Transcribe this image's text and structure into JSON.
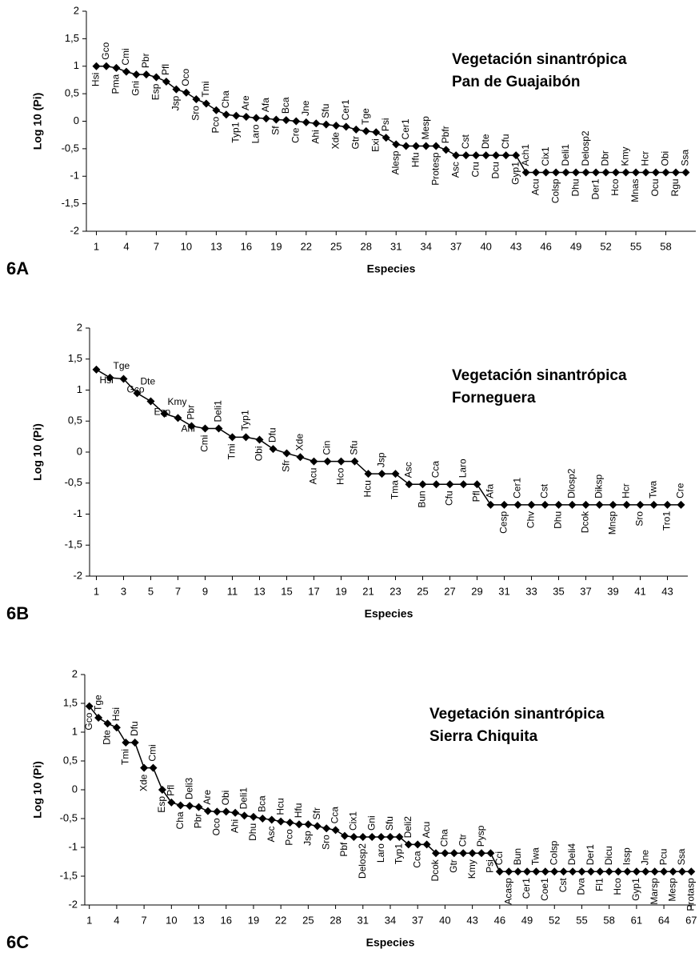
{
  "chart_data": [
    {
      "type": "line",
      "panel": "6A",
      "title": "Vegetación sinantrópica",
      "subtitle": "Pan de Guajaibón",
      "y_label": "Log 10 (Pi)",
      "x_label": "Especies",
      "color": "#000000",
      "xlim": [
        0,
        61
      ],
      "ylim": [
        -2,
        2
      ],
      "xticks": [
        1,
        4,
        7,
        10,
        13,
        16,
        19,
        22,
        25,
        28,
        31,
        34,
        37,
        40,
        43,
        46,
        49,
        52,
        55,
        58
      ],
      "yticks": [
        -2,
        {
          "value": -1.5,
          "label": "-1,5"
        },
        -1,
        {
          "value": -0.5,
          "label": "-0,5"
        },
        0,
        {
          "value": 0.5,
          "label": "0,5"
        },
        1,
        {
          "value": 1.5,
          "label": "1,5"
        },
        2
      ],
      "x": [
        1,
        2,
        3,
        4,
        5,
        6,
        7,
        8,
        9,
        10,
        11,
        12,
        13,
        14,
        15,
        16,
        17,
        18,
        19,
        20,
        21,
        22,
        23,
        24,
        25,
        26,
        27,
        28,
        29,
        30,
        31,
        32,
        33,
        34,
        35,
        36,
        37,
        38,
        39,
        40,
        41,
        42,
        43,
        44,
        45,
        46,
        47,
        48,
        49,
        50,
        51,
        52,
        53,
        54,
        55,
        56,
        57,
        58,
        59,
        60
      ],
      "point_labels": [
        "Hsi",
        "Gco",
        "Pma",
        "Cmi",
        "Gni",
        "Pbr",
        "Esp",
        "Pfl",
        "Jsp",
        "Oco",
        "Sro",
        "Tmi",
        "Pco",
        "Cha",
        "Typ1",
        "Are",
        "Laro",
        "Afa",
        "Sf",
        "Bca",
        "Cre",
        "Jne",
        "Ahi",
        "Sfu",
        "Xde",
        "Cer1",
        "Gtr",
        "Tge",
        "Exi",
        "Psi",
        "Alesp",
        "Cer1",
        "Hfu",
        "Mesp",
        "Protesp",
        "Pbfr",
        "Asc",
        "Cst",
        "Cru",
        "Dte",
        "Dcu",
        "Cfu",
        "Gyp1",
        "Ach1",
        "Acu",
        "Cix1",
        "Colsp",
        "Deli1",
        "Dhu",
        "Delosp2",
        "Der1",
        "Dbr",
        "Hco",
        "Kmy",
        "Mnas",
        "Hcr",
        "Ocu",
        "Obi",
        "Rgu",
        "Ssa"
      ],
      "values": [
        1.0,
        1.0,
        0.97,
        0.9,
        0.85,
        0.85,
        0.8,
        0.72,
        0.58,
        0.52,
        0.4,
        0.32,
        0.2,
        0.12,
        0.1,
        0.08,
        0.06,
        0.05,
        0.03,
        0.02,
        0.0,
        -0.02,
        -0.04,
        -0.06,
        -0.08,
        -0.1,
        -0.15,
        -0.18,
        -0.2,
        -0.3,
        -0.42,
        -0.45,
        -0.45,
        -0.45,
        -0.45,
        -0.52,
        -0.62,
        -0.62,
        -0.62,
        -0.62,
        -0.62,
        -0.62,
        -0.62,
        -0.93,
        -0.93,
        -0.93,
        -0.93,
        -0.93,
        -0.93,
        -0.93,
        -0.93,
        -0.93,
        -0.93,
        -0.93,
        -0.93,
        -0.93,
        -0.93,
        -0.93,
        -0.93,
        -0.93
      ]
    },
    {
      "type": "line",
      "panel": "6B",
      "title": "Vegetación sinantrópica",
      "subtitle": "Forneguera",
      "y_label": "Log 10 (Pi)",
      "x_label": "Especies",
      "color": "#000000",
      "xlim": [
        0.5,
        44.5
      ],
      "ylim": [
        -2,
        2
      ],
      "xticks": [
        1,
        3,
        5,
        7,
        9,
        11,
        13,
        15,
        17,
        19,
        21,
        23,
        25,
        27,
        29,
        31,
        33,
        35,
        37,
        39,
        41,
        43
      ],
      "yticks": [
        -2,
        {
          "value": -1.5,
          "label": "-1,5"
        },
        -1,
        {
          "value": -0.5,
          "label": "-0,5"
        },
        0,
        {
          "value": 0.5,
          "label": "0,5"
        },
        1,
        {
          "value": 1.5,
          "label": "1,5"
        },
        2
      ],
      "x": [
        1,
        2,
        3,
        4,
        5,
        6,
        7,
        8,
        9,
        10,
        11,
        12,
        13,
        14,
        15,
        16,
        17,
        18,
        19,
        20,
        21,
        22,
        23,
        24,
        25,
        26,
        27,
        28,
        29,
        30,
        31,
        32,
        33,
        34,
        35,
        36,
        37,
        38,
        39,
        40,
        41,
        42,
        43,
        44
      ],
      "point_labels": [
        "Hsi",
        "Tge",
        "Gco",
        "Dte",
        "Esp",
        "Kmy",
        "Ahi",
        "Pbr",
        "Cmi",
        "Deli1",
        "Tmi",
        "Typ1",
        "Obi",
        "Dfu",
        "Sfr",
        "Xde",
        "Acu",
        "Cin",
        "Hco",
        "Sfu",
        "Hcu",
        "Jsp",
        "Tma",
        "Asc",
        "Bun",
        "Cca",
        "Cfu",
        "Laro",
        "Pfl",
        "Afa",
        "Cesp",
        "Cer1",
        "Chv",
        "Cst",
        "Dhu",
        "Dlosp2",
        "Dcok",
        "Diksp",
        "Mnsp",
        "Hcr",
        "Sro",
        "Twa",
        "Tro1",
        "Cre"
      ],
      "values": [
        1.33,
        1.2,
        1.18,
        0.95,
        0.82,
        0.62,
        0.55,
        0.42,
        0.38,
        0.38,
        0.24,
        0.24,
        0.2,
        0.05,
        -0.02,
        -0.08,
        -0.15,
        -0.15,
        -0.15,
        -0.15,
        -0.35,
        -0.35,
        -0.35,
        -0.52,
        -0.52,
        -0.52,
        -0.52,
        -0.52,
        -0.52,
        -0.85,
        -0.85,
        -0.85,
        -0.85,
        -0.85,
        -0.85,
        -0.85,
        -0.85,
        -0.85,
        -0.85,
        -0.85,
        -0.85,
        -0.85,
        -0.85,
        -0.85
      ]
    },
    {
      "type": "line",
      "panel": "6C",
      "title": "Vegetación sinantrópica",
      "subtitle": "Sierra Chiquita",
      "y_label": "Log 10 (Pi)",
      "x_label": "Especies",
      "color": "#000000",
      "xlim": [
        0.5,
        67.5
      ],
      "ylim": [
        -2,
        2
      ],
      "xticks": [
        1,
        4,
        7,
        10,
        13,
        16,
        19,
        22,
        25,
        28,
        31,
        34,
        37,
        40,
        43,
        46,
        49,
        52,
        55,
        58,
        61,
        64,
        67
      ],
      "yticks": [
        -2,
        {
          "value": -1.5,
          "label": "-1,5"
        },
        -1,
        {
          "value": -0.5,
          "label": "-0,5"
        },
        0,
        {
          "value": 0.5,
          "label": "0,5"
        },
        1,
        {
          "value": 1.5,
          "label": "1,5"
        },
        2
      ],
      "x": [
        1,
        2,
        3,
        4,
        5,
        6,
        7,
        8,
        9,
        10,
        11,
        12,
        13,
        14,
        15,
        16,
        17,
        18,
        19,
        20,
        21,
        22,
        23,
        24,
        25,
        26,
        27,
        28,
        29,
        30,
        31,
        32,
        33,
        34,
        35,
        36,
        37,
        38,
        39,
        40,
        41,
        42,
        43,
        44,
        45,
        46,
        47,
        48,
        49,
        50,
        51,
        52,
        53,
        54,
        55,
        56,
        57,
        58,
        59,
        60,
        61,
        62,
        63,
        64,
        65,
        66,
        67
      ],
      "point_labels": [
        "Gco",
        "Tge",
        "Dte",
        "Hsi",
        "Tmi",
        "Dfu",
        "Xde",
        "Cmi",
        "Esp",
        "Pfl",
        "Cha",
        "Deli3",
        "Pbr",
        "Are",
        "Oco",
        "Obi",
        "Ahi",
        "Deli1",
        "Dhu",
        "Bca",
        "Asc",
        "Hcu",
        "Pco",
        "Hfu",
        "Jsp",
        "Sfr",
        "Sro",
        "Cca",
        "Pbf",
        "Cix1",
        "Delosp2",
        "Gni",
        "Laro",
        "Sfu",
        "Typ1",
        "Deli2",
        "Cca",
        "Acu",
        "Dcok",
        "Cha",
        "Gtr",
        "Ctr",
        "Kmy",
        "Pysp",
        "Psi",
        "Cci",
        "Acasp",
        "Bun",
        "Cer1",
        "Twa",
        "Coe1",
        "Colsp",
        "Cst",
        "Deli4",
        "Dva",
        "Der1",
        "Fl1",
        "Dicu",
        "Hco",
        "Issp",
        "Gyp1",
        "Jne",
        "Marsp",
        "Pcu",
        "Mesp",
        "Ssa",
        "Protasp"
      ],
      "values": [
        1.45,
        1.25,
        1.15,
        1.08,
        0.82,
        0.82,
        0.38,
        0.38,
        0.0,
        -0.22,
        -0.27,
        -0.28,
        -0.3,
        -0.37,
        -0.38,
        -0.38,
        -0.4,
        -0.45,
        -0.47,
        -0.5,
        -0.52,
        -0.55,
        -0.57,
        -0.6,
        -0.6,
        -0.63,
        -0.67,
        -0.7,
        -0.8,
        -0.82,
        -0.82,
        -0.82,
        -0.82,
        -0.82,
        -0.82,
        -0.95,
        -0.95,
        -0.95,
        -1.1,
        -1.1,
        -1.1,
        -1.1,
        -1.1,
        -1.1,
        -1.1,
        -1.42,
        -1.42,
        -1.42,
        -1.42,
        -1.42,
        -1.42,
        -1.42,
        -1.42,
        -1.42,
        -1.42,
        -1.42,
        -1.42,
        -1.42,
        -1.42,
        -1.42,
        -1.42,
        -1.42,
        -1.42,
        -1.42,
        -1.42,
        -1.42,
        -1.42
      ]
    }
  ]
}
